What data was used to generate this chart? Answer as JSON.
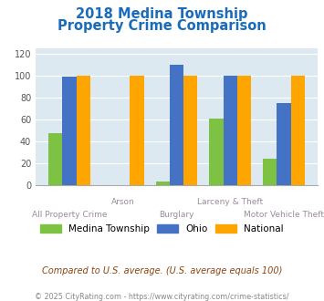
{
  "title_line1": "2018 Medina Township",
  "title_line2": "Property Crime Comparison",
  "categories": [
    "All Property Crime",
    "Arson",
    "Burglary",
    "Larceny & Theft",
    "Motor Vehicle Theft"
  ],
  "medina": [
    47,
    0,
    3,
    61,
    24
  ],
  "ohio": [
    99,
    0,
    110,
    100,
    75
  ],
  "national": [
    100,
    100,
    100,
    100,
    100
  ],
  "bar_color_medina": "#7dc242",
  "bar_color_ohio": "#4472c4",
  "bar_color_national": "#ffa500",
  "bg_color": "#dce9f0",
  "title_color": "#1a6cba",
  "ylabel_ticks": [
    0,
    20,
    40,
    60,
    80,
    100,
    120
  ],
  "ylim": [
    0,
    125
  ],
  "legend_labels": [
    "Medina Township",
    "Ohio",
    "National"
  ],
  "footnote1": "Compared to U.S. average. (U.S. average equals 100)",
  "footnote2": "© 2025 CityRating.com - https://www.cityrating.com/crime-statistics/",
  "footnote1_color": "#8b4513",
  "footnote2_color": "#888888",
  "xlabel_color": "#9b8b9b",
  "tick_color": "#555555",
  "row1_labels": [
    "",
    "Arson",
    "",
    "Larceny & Theft",
    ""
  ],
  "row2_labels": [
    "All Property Crime",
    "",
    "Burglary",
    "",
    "Motor Vehicle Theft"
  ]
}
